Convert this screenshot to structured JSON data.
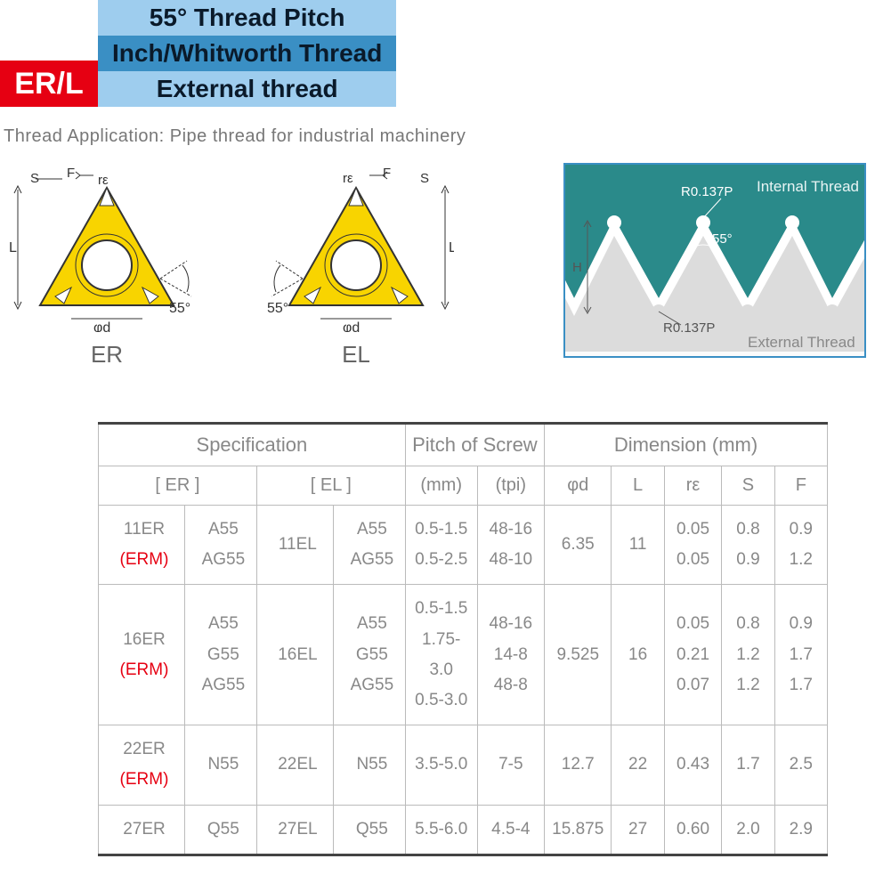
{
  "header": {
    "badge": "ER/L",
    "line1": "55° Thread Pitch",
    "line2": "Inch/Whitworth Thread",
    "line3": "External thread",
    "badge_bg": "#e60012",
    "dark_bg": "#3a8fc4",
    "light_bg": "#9ecdee"
  },
  "application_note": "Thread Application: Pipe thread for industrial machinery",
  "diagrams": {
    "insert_color": "#f8d400",
    "er_label": "ER",
    "el_label": "EL",
    "angle_label": "55°",
    "dim_S": "S",
    "dim_F": "F",
    "dim_re": "rε",
    "dim_L": "L",
    "dim_d": "φd"
  },
  "thread_profile": {
    "bg_top": "#2a8a8a",
    "bg_bottom": "#dcdcdc",
    "internal_label": "Internal Thread",
    "external_label": "External Thread",
    "angle": "55°",
    "r_top": "R0.137P",
    "r_bottom": "R0.137P",
    "H": "H"
  },
  "table": {
    "headers": {
      "spec": "Specification",
      "pitch": "Pitch of Screw",
      "dim": "Dimension (mm)",
      "er": "[ ER ]",
      "el": "[ EL ]",
      "mm": "(mm)",
      "tpi": "(tpi)",
      "d": "φd",
      "L": "L",
      "re": "rε",
      "S": "S",
      "F": "F"
    },
    "rows": [
      {
        "er_code": "11ER",
        "er_erm": "(ERM)",
        "er_types": "A55\nAG55",
        "el_code": "11EL",
        "el_types": "A55\nAG55",
        "mm": "0.5-1.5\n0.5-2.5",
        "tpi": "48-16\n48-10",
        "d": "6.35",
        "L": "11",
        "re": "0.05\n0.05",
        "S": "0.8\n0.9",
        "F": "0.9\n1.2"
      },
      {
        "er_code": "16ER",
        "er_erm": "(ERM)",
        "er_types": "A55\nG55\nAG55",
        "el_code": "16EL",
        "el_types": "A55\nG55\nAG55",
        "mm": "0.5-1.5\n1.75-3.0\n0.5-3.0",
        "tpi": "48-16\n14-8\n48-8",
        "d": "9.525",
        "L": "16",
        "re": "0.05\n0.21\n0.07",
        "S": "0.8\n1.2\n1.2",
        "F": "0.9\n1.7\n1.7"
      },
      {
        "er_code": "22ER",
        "er_erm": "(ERM)",
        "er_types": "N55",
        "el_code": "22EL",
        "el_types": "N55",
        "mm": "3.5-5.0",
        "tpi": "7-5",
        "d": "12.7",
        "L": "22",
        "re": "0.43",
        "S": "1.7",
        "F": "2.5"
      },
      {
        "er_code": "27ER",
        "er_erm": "",
        "er_types": "Q55",
        "el_code": "27EL",
        "el_types": "Q55",
        "mm": "5.5-6.0",
        "tpi": "4.5-4",
        "d": "15.875",
        "L": "27",
        "re": "0.60",
        "S": "2.0",
        "F": "2.9"
      }
    ]
  }
}
